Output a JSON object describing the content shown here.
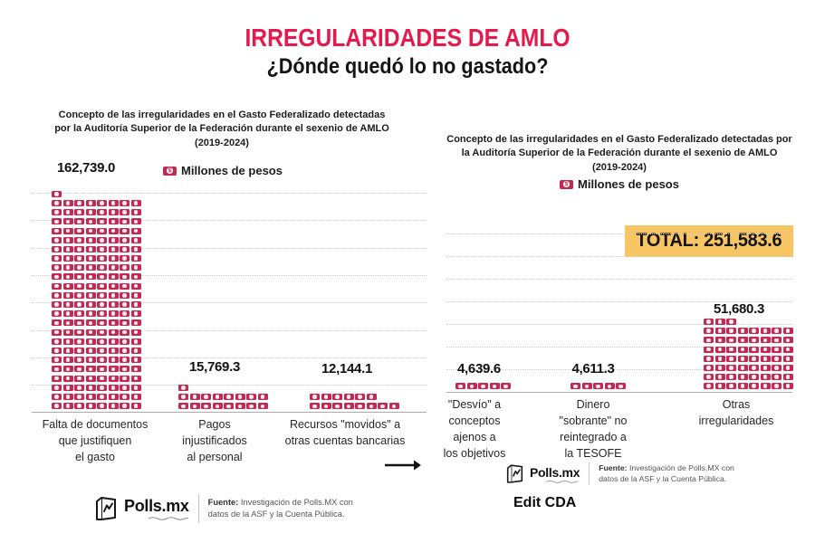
{
  "title": "IRREGULARIDADES DE AMLO",
  "subtitle": "¿Dónde quedó lo no gastado?",
  "colors": {
    "accent": "#e4194d",
    "icon": "#c32952",
    "total_bg": "#f7c563"
  },
  "panels": [
    {
      "header": "Concepto de las irregularidades en el Gasto Federalizado detectadas por la Auditoría Superior de la Federación durante el sexenio de AMLO (2019-2024)",
      "legend_label": "Millones de pesos",
      "bars": [
        {
          "value": "162,739.0",
          "label": "Falta de documentos\nque justifiquen\nel gasto",
          "rows": [
            1,
            8,
            8,
            8,
            8,
            8,
            8,
            8,
            8,
            8,
            8,
            8,
            8,
            8,
            8,
            8,
            8,
            8,
            8,
            8,
            8,
            8,
            8,
            8
          ]
        },
        {
          "value": "15,769.3",
          "label": "Pagos\ninjustificados\nal personal",
          "rows": [
            1,
            8,
            8
          ]
        },
        {
          "value": "12,144.1",
          "label": "Recursos \"movidos\" a\notras cuentas bancarias",
          "rows": [
            6,
            8
          ]
        }
      ]
    },
    {
      "header": "Concepto de las irregularidades en el Gasto Federalizado detectadas por la Auditoría Superior de la Federación durante el sexenio de AMLO (2019-2024)",
      "legend_label": "Millones de pesos",
      "total_label": "TOTAL: 251,583.6",
      "bars": [
        {
          "value": "4,639.6",
          "label": "\"Desvío\" a\nconceptos\najenos a\nlos objetivos",
          "rows": [
            5
          ]
        },
        {
          "value": "4,611.3",
          "label": "Dinero\n\"sobrante\" no\nreintegrado a\nla TESOFE",
          "rows": [
            5
          ]
        },
        {
          "value": "51,680.3",
          "label": "Otras\nirregularidades",
          "rows": [
            3,
            8,
            8,
            8,
            8,
            8,
            8,
            8
          ]
        }
      ]
    }
  ],
  "footers": [
    {
      "brand": "Polls.mx",
      "source_label": "Fuente:",
      "source_text": "Investigación de Polls.MX con datos de la ASF y la Cuenta Pública."
    },
    {
      "brand": "Polls.mx",
      "source_label": "Fuente:",
      "source_text": "Investigación de Polls.MX con datos de la ASF y la Cuenta Pública."
    }
  ],
  "edit_credit": "Edit CDA",
  "chart_data": [
    {
      "type": "bar",
      "subtype": "pictogram",
      "icon": "banknote",
      "title": "Concepto de las irregularidades en el Gasto Federalizado detectadas por la Auditoría Superior de la Federación durante el sexenio de AMLO (2019-2024)",
      "unit": "Millones de pesos",
      "categories": [
        "Falta de documentos que justifiquen el gasto",
        "Pagos injustificados al personal",
        "Recursos \"movidos\" a otras cuentas bancarias"
      ],
      "values": [
        162739.0,
        15769.3,
        12144.1
      ],
      "legend_position": "top",
      "grid": "dotted-horizontal"
    },
    {
      "type": "bar",
      "subtype": "pictogram",
      "icon": "banknote",
      "title": "Concepto de las irregularidades en el Gasto Federalizado detectadas por la Auditoría Superior de la Federación durante el sexenio de AMLO (2019-2024)",
      "unit": "Millones de pesos",
      "categories": [
        "\"Desvío\" a conceptos ajenos a los objetivos",
        "Dinero \"sobrante\" no reintegrado a la TESOFE",
        "Otras irregularidades"
      ],
      "values": [
        4639.6,
        4611.3,
        51680.3
      ],
      "total": 251583.6,
      "legend_position": "top",
      "grid": "dotted-horizontal"
    }
  ]
}
